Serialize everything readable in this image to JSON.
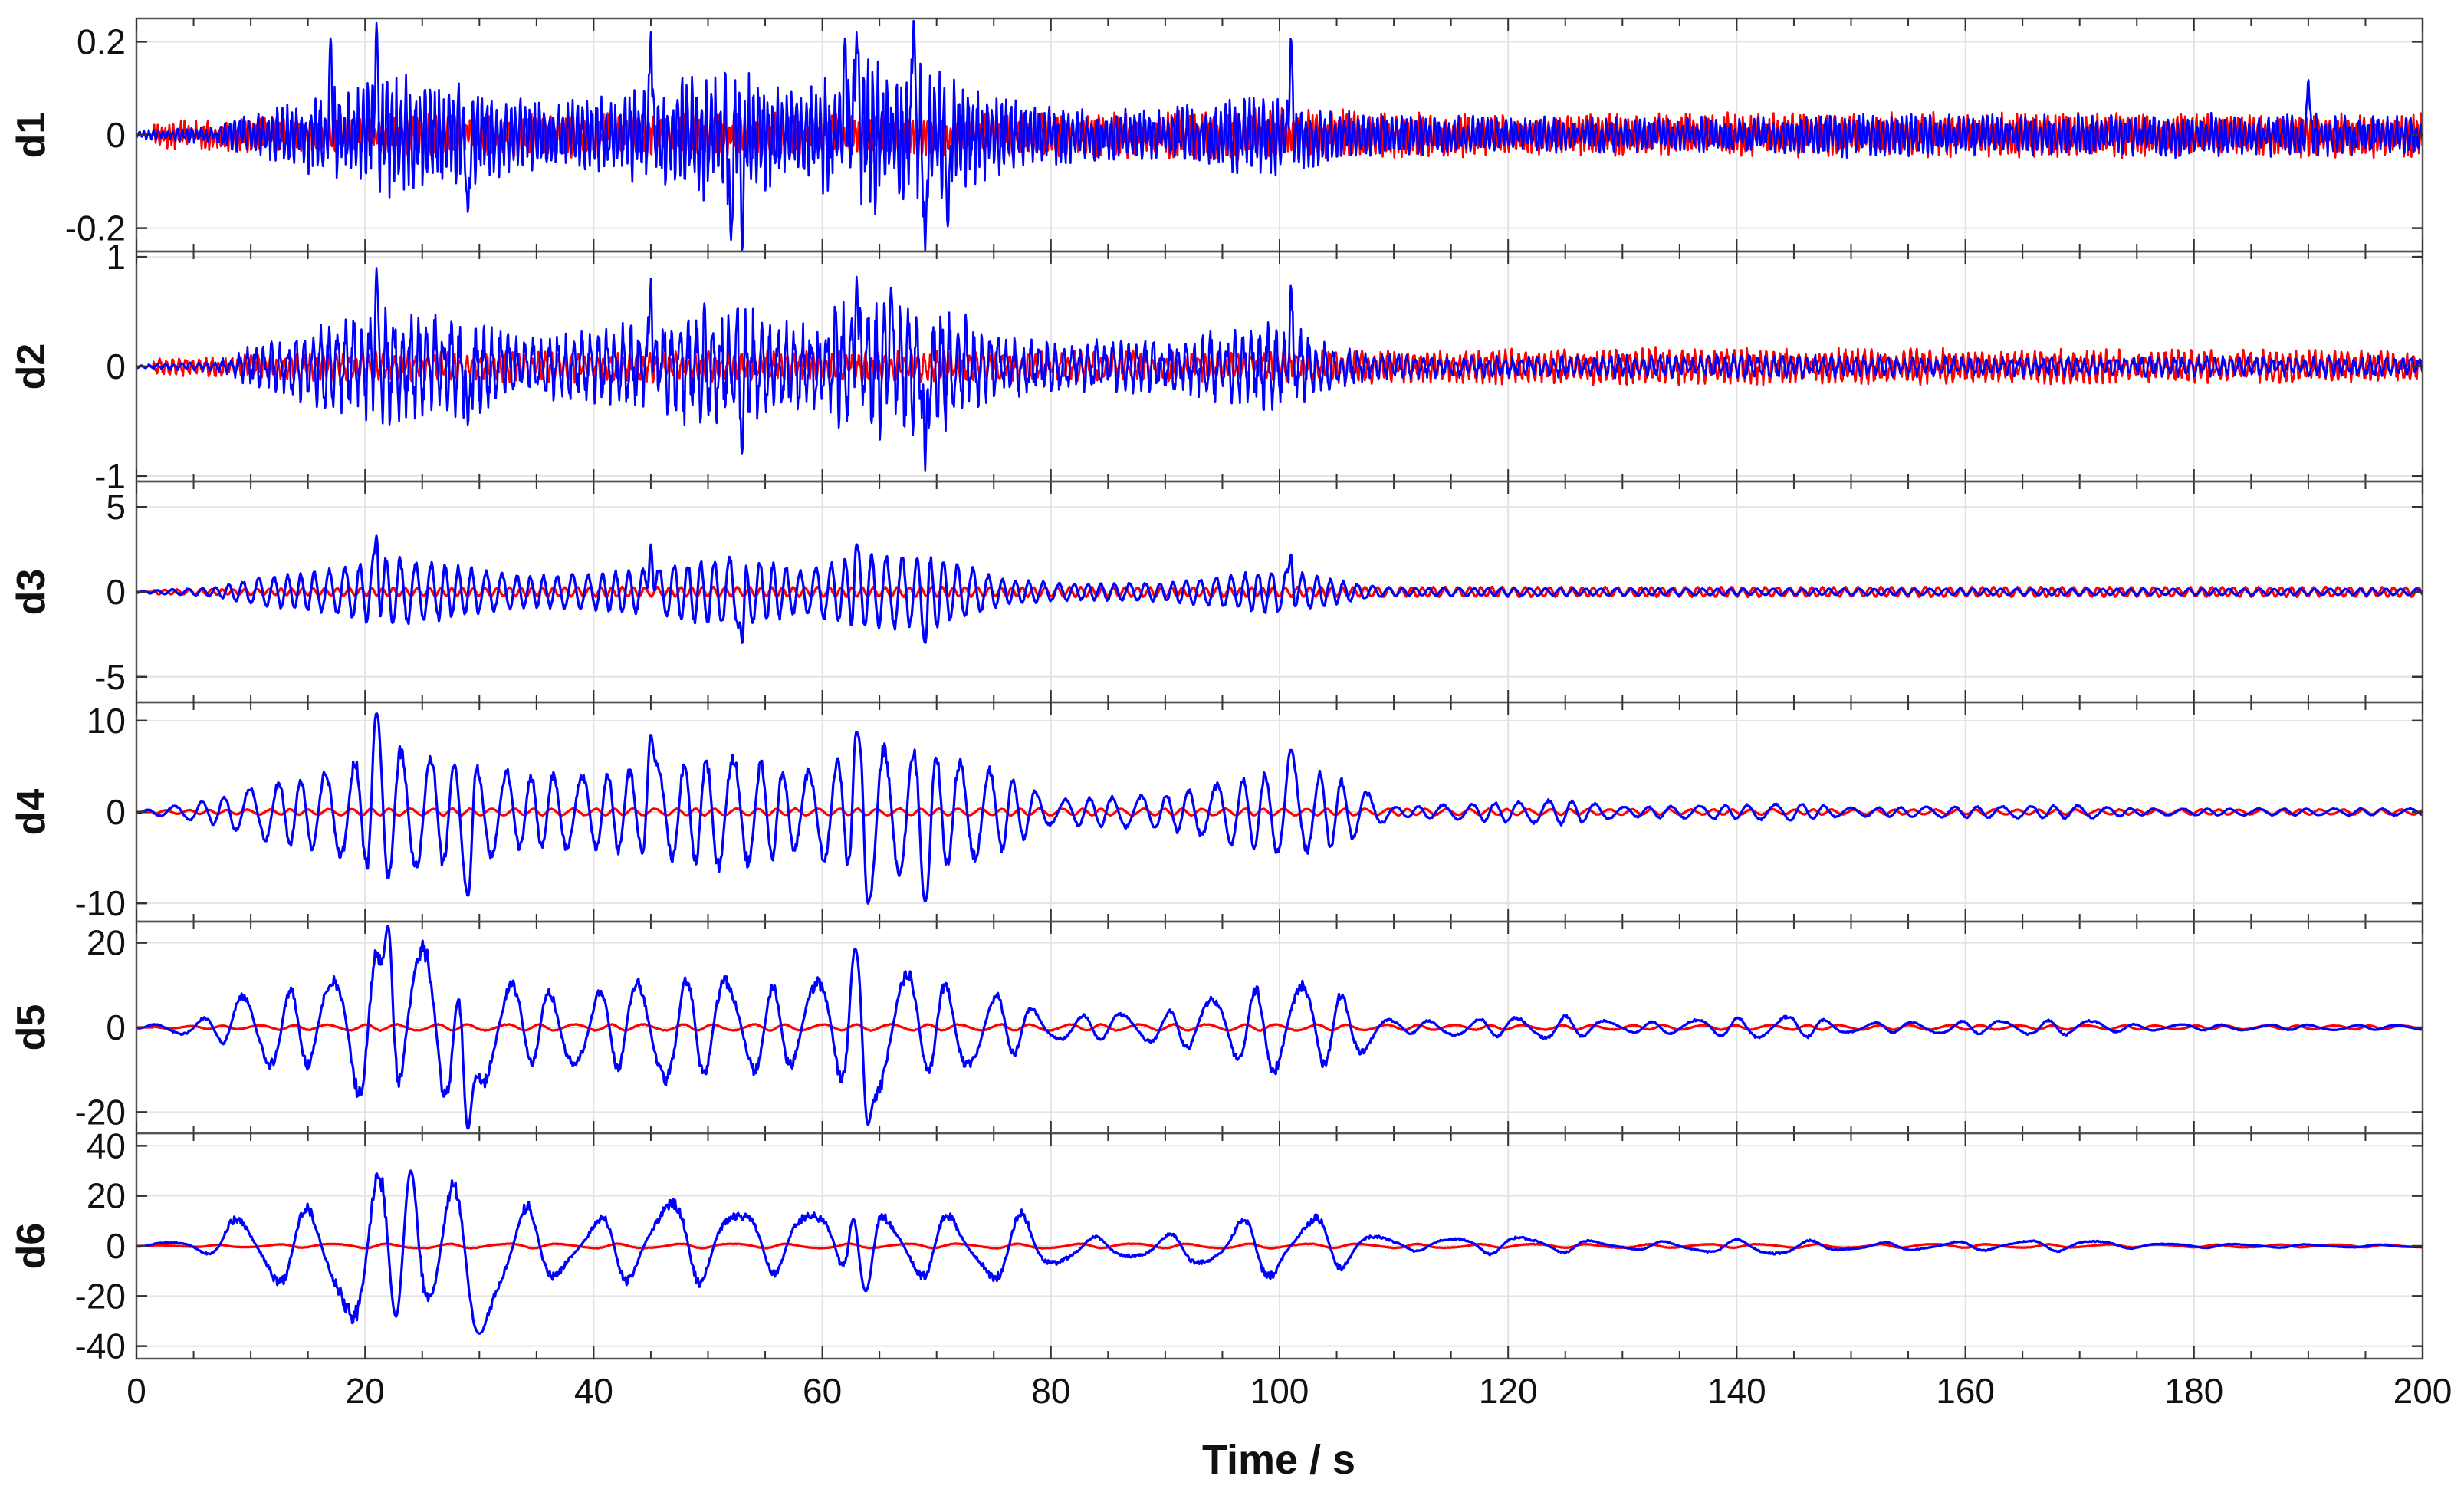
{
  "chart_data": {
    "type": "line",
    "xlabel": "Time / s",
    "xlim": [
      0,
      200
    ],
    "x_ticks": [
      0,
      20,
      40,
      60,
      80,
      100,
      120,
      140,
      160,
      180,
      200
    ],
    "x_tick_labels": [
      "0",
      "20",
      "40",
      "60",
      "80",
      "100",
      "120",
      "140",
      "160",
      "180",
      "200"
    ],
    "grid": true,
    "series_colors": [
      "#ff0000",
      "#0000ff"
    ],
    "panels": [
      {
        "label": "d1",
        "ylim": [
          -0.25,
          0.25
        ],
        "y_ticks": [
          -0.2,
          0,
          0.2
        ],
        "y_tick_labels": [
          "-0.2",
          "0",
          "0.2"
        ],
        "series": [
          {
            "color": "#ff0000",
            "envelope": {
              "t": [
                2,
                10,
                20,
                30,
                40,
                50,
                60,
                70,
                80,
                100,
                120,
                140,
                160,
                180,
                200
              ],
              "amp": [
                0.03,
                0.04,
                0.045,
                0.05,
                0.05,
                0.05,
                0.05,
                0.05,
                0.05,
                0.06,
                0.045,
                0.05,
                0.05,
                0.05,
                0.05
              ]
            }
          },
          {
            "color": "#0000ff",
            "envelope": {
              "t": [
                0,
                7,
                10,
                16,
                22,
                28,
                34,
                40,
                46,
                52,
                58,
                64,
                70,
                76,
                82,
                90,
                100,
                104,
                108,
                120,
                140,
                150,
                160,
                180,
                200
              ],
              "amp": [
                0.01,
                0.02,
                0.05,
                0.1,
                0.14,
                0.12,
                0.08,
                0.08,
                0.12,
                0.16,
                0.1,
                0.18,
                0.16,
                0.08,
                0.06,
                0.06,
                0.1,
                0.06,
                0.05,
                0.04,
                0.04,
                0.05,
                0.045,
                0.05,
                0.045
              ]
            },
            "peaks": [
              [
                17,
                0.21
              ],
              [
                21,
                0.24
              ],
              [
                45,
                0.22
              ],
              [
                52,
                -0.23
              ],
              [
                53,
                -0.25
              ],
              [
                62,
                0.21
              ],
              [
                63,
                0.22
              ],
              [
                68,
                0.25
              ],
              [
                69,
                -0.25
              ],
              [
                71,
                -0.2
              ],
              [
                101,
                0.21
              ],
              [
                29,
                -0.17
              ],
              [
                190,
                0.12
              ]
            ]
          }
        ]
      },
      {
        "label": "d2",
        "ylim": [
          -1.05,
          1.05
        ],
        "y_ticks": [
          -1,
          0,
          1
        ],
        "y_tick_labels": [
          "-1",
          "0",
          "1"
        ],
        "series": [
          {
            "color": "#ff0000",
            "envelope": {
              "t": [
                2,
                10,
                20,
                40,
                60,
                80,
                100,
                120,
                140,
                160,
                180,
                200
              ],
              "amp": [
                0.08,
                0.12,
                0.15,
                0.15,
                0.15,
                0.15,
                0.15,
                0.18,
                0.18,
                0.17,
                0.16,
                0.15
              ]
            }
          },
          {
            "color": "#0000ff",
            "envelope": {
              "t": [
                0,
                7,
                10,
                16,
                22,
                28,
                34,
                40,
                46,
                52,
                58,
                64,
                70,
                76,
                82,
                90,
                100,
                104,
                108,
                120,
                140,
                160,
                180,
                200
              ],
              "amp": [
                0.02,
                0.05,
                0.2,
                0.4,
                0.6,
                0.5,
                0.3,
                0.35,
                0.5,
                0.65,
                0.45,
                0.7,
                0.65,
                0.3,
                0.25,
                0.25,
                0.45,
                0.25,
                0.12,
                0.1,
                0.12,
                0.1,
                0.1,
                0.1
              ]
            },
            "peaks": [
              [
                21,
                0.9
              ],
              [
                45,
                0.8
              ],
              [
                53,
                -0.8
              ],
              [
                63,
                0.82
              ],
              [
                66,
                0.72
              ],
              [
                69,
                -0.95
              ],
              [
                101,
                0.75
              ],
              [
                29,
                -0.55
              ]
            ]
          }
        ]
      },
      {
        "label": "d3",
        "ylim": [
          -6.5,
          6.5
        ],
        "y_ticks": [
          -5,
          0,
          5
        ],
        "y_tick_labels": [
          "-5",
          "0",
          "5"
        ],
        "series": [
          {
            "color": "#ff0000",
            "envelope": {
              "t": [
                2,
                20,
                40,
                60,
                80,
                100,
                120,
                140,
                160,
                180,
                200
              ],
              "amp": [
                0.15,
                0.25,
                0.3,
                0.3,
                0.3,
                0.3,
                0.3,
                0.3,
                0.3,
                0.3,
                0.3
              ]
            }
          },
          {
            "color": "#0000ff",
            "envelope": {
              "t": [
                0,
                7,
                10,
                16,
                22,
                28,
                34,
                40,
                46,
                52,
                58,
                64,
                70,
                76,
                82,
                90,
                100,
                104,
                107,
                110,
                140,
                200
              ],
              "amp": [
                0.05,
                0.3,
                0.8,
                1.3,
                2.2,
                1.6,
                1.0,
                1.1,
                1.6,
                2.3,
                1.4,
                2.4,
                2.2,
                0.8,
                0.5,
                0.6,
                1.4,
                0.9,
                0.5,
                0.25,
                0.2,
                0.2
              ]
            },
            "peaks": [
              [
                21,
                3.3
              ],
              [
                45,
                2.8
              ],
              [
                53,
                -3.0
              ],
              [
                63,
                2.8
              ],
              [
                69,
                -3.0
              ],
              [
                101,
                2.2
              ]
            ]
          }
        ]
      },
      {
        "label": "d4",
        "ylim": [
          -12,
          12
        ],
        "y_ticks": [
          -10,
          0,
          10
        ],
        "y_tick_labels": [
          "-10",
          "0",
          "10"
        ],
        "series": [
          {
            "color": "#ff0000",
            "envelope": {
              "t": [
                2,
                20,
                40,
                60,
                80,
                100,
                120,
                140,
                160,
                180,
                200
              ],
              "amp": [
                0.2,
                0.4,
                0.4,
                0.4,
                0.4,
                0.4,
                0.35,
                0.3,
                0.3,
                0.3,
                0.3
              ]
            }
          },
          {
            "color": "#0000ff",
            "envelope": {
              "t": [
                0,
                7,
                10,
                16,
                22,
                28,
                34,
                40,
                46,
                52,
                58,
                64,
                70,
                76,
                80,
                90,
                100,
                104,
                107,
                110,
                125,
                130,
                145,
                150,
                170,
                175,
                200
              ],
              "amp": [
                0.1,
                1.5,
                3.0,
                4.5,
                8.0,
                6.0,
                4.5,
                4.5,
                5.5,
                7.0,
                4.5,
                8.0,
                7.0,
                4.5,
                1.5,
                2.0,
                5.0,
                4.5,
                3.0,
                0.6,
                1.5,
                0.6,
                1.0,
                0.5,
                0.8,
                0.4,
                0.4
              ]
            },
            "peaks": [
              [
                21,
                10.8
              ],
              [
                29,
                -9.2
              ],
              [
                45,
                8.5
              ],
              [
                63,
                8.8
              ],
              [
                64,
                -10.0
              ],
              [
                69,
                -9.8
              ],
              [
                101,
                6.8
              ]
            ]
          }
        ]
      },
      {
        "label": "d5",
        "ylim": [
          -25,
          25
        ],
        "y_ticks": [
          -20,
          0,
          20
        ],
        "y_tick_labels": [
          "-20",
          "0",
          "20"
        ],
        "series": [
          {
            "color": "#ff0000",
            "envelope": {
              "t": [
                2,
                20,
                40,
                60,
                80,
                100,
                120,
                140,
                160,
                180,
                200
              ],
              "amp": [
                0.3,
                0.8,
                0.8,
                0.8,
                0.8,
                0.8,
                0.6,
                0.6,
                0.6,
                0.5,
                0.5
              ]
            }
          },
          {
            "color": "#0000ff",
            "envelope": {
              "t": [
                0,
                7,
                10,
                16,
                20,
                24,
                28,
                34,
                40,
                46,
                52,
                58,
                64,
                70,
                76,
                80,
                90,
                100,
                104,
                107,
                110,
                125,
                130,
                145,
                150,
                170,
                175,
                200
              ],
              "amp": [
                0.2,
                3,
                10,
                10,
                19,
                22,
                18,
                10,
                9,
                14,
                12,
                10,
                17,
                12,
                8,
                3,
                4,
                12,
                10,
                7,
                1.5,
                3,
                1.2,
                3,
                1.2,
                2,
                0.8,
                0.6
              ]
            },
            "peaks": [
              [
                22,
                24
              ],
              [
                29,
                -24
              ],
              [
                63,
                20
              ],
              [
                64,
                -23
              ]
            ]
          }
        ]
      },
      {
        "label": "d6",
        "ylim": [
          -45,
          45
        ],
        "y_ticks": [
          -40,
          -20,
          0,
          20,
          40
        ],
        "y_tick_labels": [
          "-40",
          "-20",
          "0",
          "20",
          "40"
        ],
        "series": [
          {
            "color": "#ff0000",
            "envelope": {
              "t": [
                2,
                20,
                40,
                60,
                80,
                100,
                120,
                140,
                160,
                180,
                200
              ],
              "amp": [
                0.3,
                1.0,
                1.0,
                1.0,
                1.0,
                1.0,
                0.8,
                0.8,
                0.8,
                0.6,
                0.6
              ]
            }
          },
          {
            "color": "#0000ff",
            "envelope": {
              "t": [
                0,
                7,
                10,
                14,
                19,
                23,
                27,
                31,
                36,
                40,
                46,
                52,
                58,
                63,
                68,
                74,
                78,
                82,
                90,
                100,
                104,
                107,
                110,
                120,
                125,
                130,
                143,
                150,
                170,
                175,
                200
              ],
              "amp": [
                0.2,
                4,
                20,
                15,
                32,
                34,
                28,
                25,
                14,
                12,
                20,
                14,
                12,
                22,
                14,
                14,
                15,
                4,
                5,
                15,
                12,
                8,
                2,
                4,
                3,
                1.5,
                3.5,
                1.5,
                2.5,
                1,
                0.5
              ]
            },
            "peaks": [
              [
                23,
                -38
              ],
              [
                30,
                -35
              ],
              [
                24,
                30
              ],
              [
                63,
                22
              ],
              [
                63.8,
                -18
              ]
            ]
          }
        ]
      }
    ]
  }
}
